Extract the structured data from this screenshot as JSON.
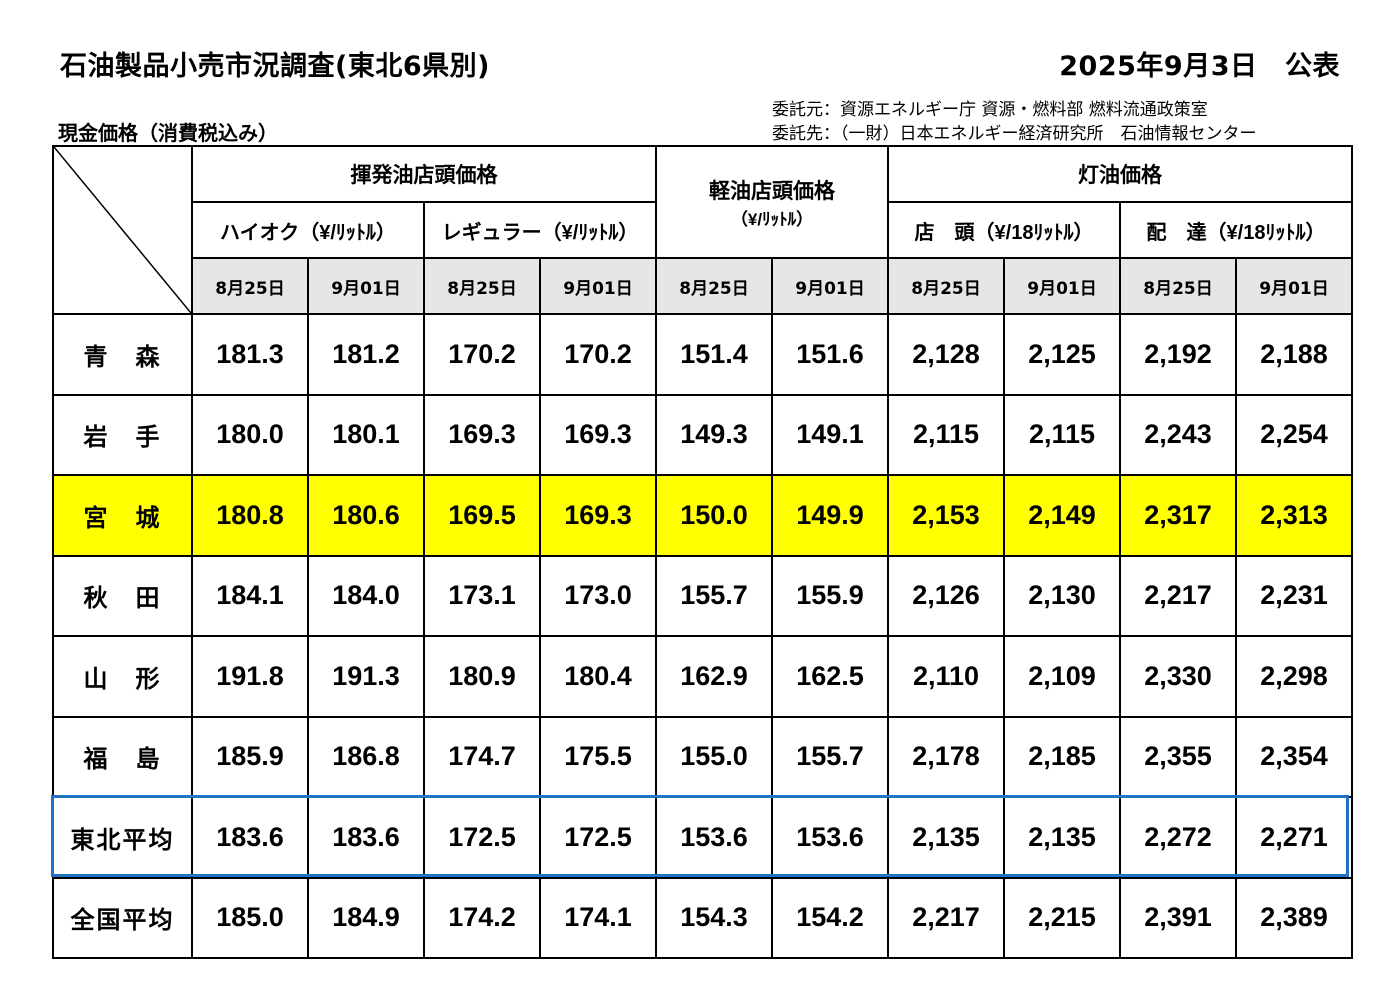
{
  "header": {
    "title": "石油製品小売市況調査(東北6県別)",
    "date": "2025年9月3日　公表",
    "subtitle": "現金価格（消費税込み）",
    "commissioner": "委託元：資源エネルギー庁 資源・燃料部 燃料流通政策室",
    "contractor": "委託先：（一財）日本エネルギー経済研究所　石油情報センター"
  },
  "table": {
    "groups": {
      "gasoline": "揮発油店頭価格",
      "diesel": "軽油店頭価格",
      "diesel_unit": "（¥/ﾘｯﾄﾙ）",
      "kerosene": "灯油価格"
    },
    "subgroups": {
      "high_octane": "ハイオク（¥/ﾘｯﾄﾙ）",
      "regular": "レギュラー（¥/ﾘｯﾄﾙ）",
      "kerosene_store": "店　頭（¥/18ﾘｯﾄﾙ）",
      "kerosene_delivery": "配　達（¥/18ﾘｯﾄﾙ）"
    },
    "dates": [
      "8月25日",
      "9月01日",
      "8月25日",
      "9月01日",
      "8月25日",
      "9月01日",
      "8月25日",
      "9月01日",
      "8月25日",
      "9月01日"
    ],
    "rows": [
      {
        "name": "青　森",
        "values": [
          "181.3",
          "181.2",
          "170.2",
          "170.2",
          "151.4",
          "151.6",
          "2,128",
          "2,125",
          "2,192",
          "2,188"
        ]
      },
      {
        "name": "岩　手",
        "values": [
          "180.0",
          "180.1",
          "169.3",
          "169.3",
          "149.3",
          "149.1",
          "2,115",
          "2,115",
          "2,243",
          "2,254"
        ]
      },
      {
        "name": "宮　城",
        "values": [
          "180.8",
          "180.6",
          "169.5",
          "169.3",
          "150.0",
          "149.9",
          "2,153",
          "2,149",
          "2,317",
          "2,313"
        ]
      },
      {
        "name": "秋　田",
        "values": [
          "184.1",
          "184.0",
          "173.1",
          "173.0",
          "155.7",
          "155.9",
          "2,126",
          "2,130",
          "2,217",
          "2,231"
        ]
      },
      {
        "name": "山　形",
        "values": [
          "191.8",
          "191.3",
          "180.9",
          "180.4",
          "162.9",
          "162.5",
          "2,110",
          "2,109",
          "2,330",
          "2,298"
        ]
      },
      {
        "name": "福　島",
        "values": [
          "185.9",
          "186.8",
          "174.7",
          "175.5",
          "155.0",
          "155.7",
          "2,178",
          "2,185",
          "2,355",
          "2,354"
        ]
      },
      {
        "name": "東北平均",
        "values": [
          "183.6",
          "183.6",
          "172.5",
          "172.5",
          "153.6",
          "153.6",
          "2,135",
          "2,135",
          "2,272",
          "2,271"
        ]
      },
      {
        "name": "全国平均",
        "values": [
          "185.0",
          "184.9",
          "174.2",
          "174.1",
          "154.3",
          "154.2",
          "2,217",
          "2,215",
          "2,391",
          "2,389"
        ]
      }
    ]
  },
  "colors": {
    "highlight_row": "#ffff00",
    "average_box": "#1f72c4",
    "date_header_bg": "#e6e6e6"
  }
}
